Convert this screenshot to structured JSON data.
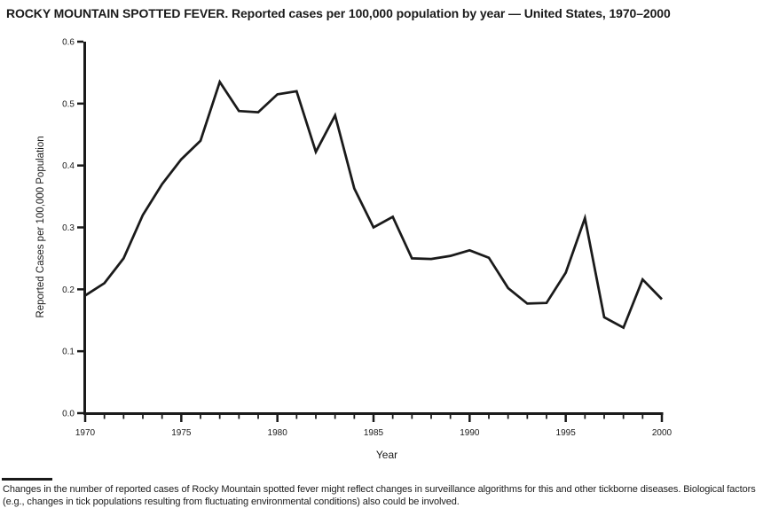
{
  "title": "ROCKY MOUNTAIN SPOTTED FEVER. Reported cases per 100,000 population by year — United States, 1970–2000",
  "chart_data": {
    "type": "line",
    "title": "ROCKY MOUNTAIN SPOTTED FEVER. Reported cases per 100,000 population by year — United States, 1970–2000",
    "xlabel": "Year",
    "ylabel": "Reported Cases per 100,000 Population",
    "x": [
      1970,
      1971,
      1972,
      1973,
      1974,
      1975,
      1976,
      1977,
      1978,
      1979,
      1980,
      1981,
      1982,
      1983,
      1984,
      1985,
      1986,
      1987,
      1988,
      1989,
      1990,
      1991,
      1992,
      1993,
      1994,
      1995,
      1996,
      1997,
      1998,
      1999,
      2000
    ],
    "values": [
      0.19,
      0.21,
      0.25,
      0.32,
      0.37,
      0.41,
      0.44,
      0.535,
      0.488,
      0.486,
      0.515,
      0.52,
      0.422,
      0.481,
      0.363,
      0.3,
      0.317,
      0.25,
      0.249,
      0.254,
      0.263,
      0.251,
      0.202,
      0.177,
      0.178,
      0.227,
      0.315,
      0.155,
      0.138,
      0.216,
      0.184
    ],
    "xlim": [
      1970,
      2000
    ],
    "ylim": [
      0.0,
      0.6
    ],
    "xticks_major": [
      1970,
      1975,
      1980,
      1985,
      1990,
      1995,
      2000
    ],
    "xticks_minor_every": 1,
    "yticks": [
      0.0,
      0.1,
      0.2,
      0.3,
      0.4,
      0.5,
      0.6
    ],
    "ytick_labels": [
      "0.0",
      "0.1",
      "0.2",
      "0.3",
      "0.4",
      "0.5",
      "0.6"
    ],
    "xtick_labels": [
      "1970",
      "1975",
      "1980",
      "1985",
      "1990",
      "1995",
      "2000"
    ],
    "grid": false,
    "line_color": "#1a1a1a",
    "axis_color": "#1a1a1a",
    "background": "#ffffff"
  },
  "footnote": "Changes in the number of reported cases of Rocky Mountain spotted fever might reflect changes in surveillance algorithms for this and other tickborne diseases. Biological factors (e.g., changes in tick populations resulting from fluctuating environmental conditions) also could be involved."
}
